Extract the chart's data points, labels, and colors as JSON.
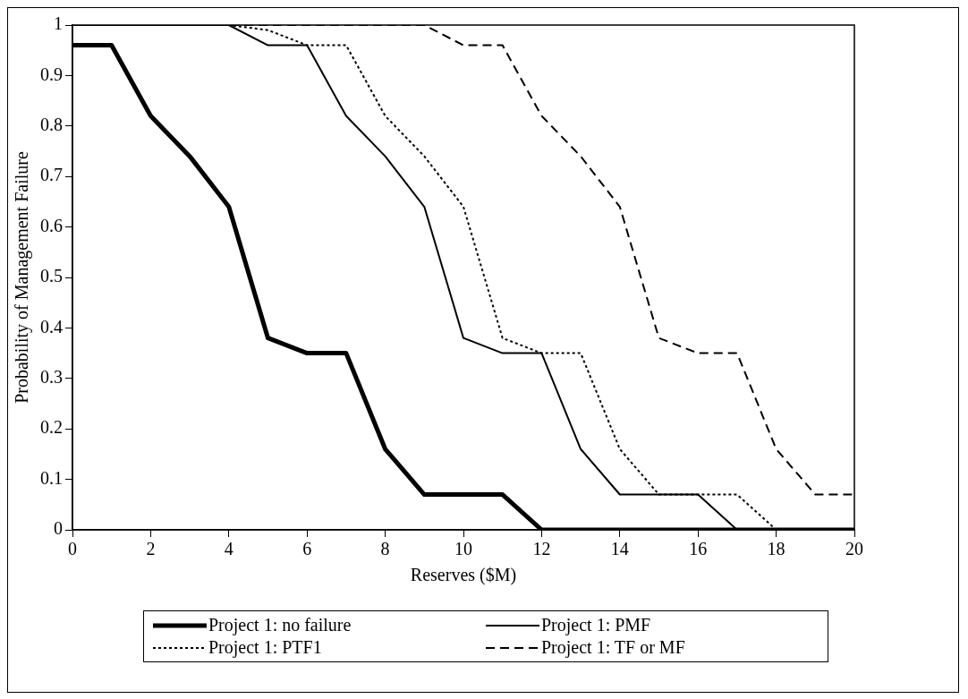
{
  "chart_data": {
    "type": "line",
    "xlabel": "Reserves ($M)",
    "ylabel": "Probability of Management Failure",
    "x": [
      0,
      1,
      2,
      3,
      4,
      5,
      6,
      7,
      8,
      9,
      10,
      11,
      12,
      13,
      14,
      15,
      16,
      17,
      18,
      19,
      20
    ],
    "series": [
      {
        "name": "Project 1: no failure",
        "color": "#000000",
        "line_style": "solid",
        "values": [
          0.96,
          0.96,
          0.82,
          0.74,
          0.64,
          0.38,
          0.35,
          0.35,
          0.16,
          0.07,
          0.07,
          0.07,
          0,
          0,
          0,
          0,
          0,
          0,
          0,
          0,
          0
        ]
      },
      {
        "name": "Project 1: PMF",
        "color": "#000000",
        "line_style": "solid",
        "values": [
          1,
          1,
          1,
          1,
          1,
          0.96,
          0.96,
          0.82,
          0.74,
          0.64,
          0.38,
          0.35,
          0.35,
          0.16,
          0.07,
          0.07,
          0.07,
          0,
          0,
          0,
          0
        ]
      },
      {
        "name": "Project 1: PTF1",
        "color": "#000000",
        "line_style": "dotted",
        "values": [
          1,
          1,
          1,
          1,
          1,
          0.99,
          0.96,
          0.96,
          0.82,
          0.74,
          0.64,
          0.38,
          0.35,
          0.35,
          0.16,
          0.07,
          0.07,
          0.07,
          0,
          0,
          0
        ]
      },
      {
        "name": "Project 1: TF or MF",
        "color": "#000000",
        "line_style": "dashed",
        "values": [
          1,
          1,
          1,
          1,
          1,
          1,
          1,
          1,
          1,
          1,
          0.96,
          0.96,
          0.82,
          0.74,
          0.64,
          0.38,
          0.35,
          0.35,
          0.16,
          0.07,
          0.07
        ]
      }
    ],
    "xlim": [
      0,
      20
    ],
    "xticks": [
      0,
      2,
      4,
      6,
      8,
      10,
      12,
      14,
      16,
      18,
      20
    ],
    "ylim": [
      0,
      1
    ],
    "yticks": [
      0,
      0.1,
      0.2,
      0.3,
      0.4,
      0.5,
      0.6,
      0.7,
      0.8,
      0.9,
      1
    ],
    "grid": false,
    "legend": "bottom",
    "marker": "none"
  }
}
